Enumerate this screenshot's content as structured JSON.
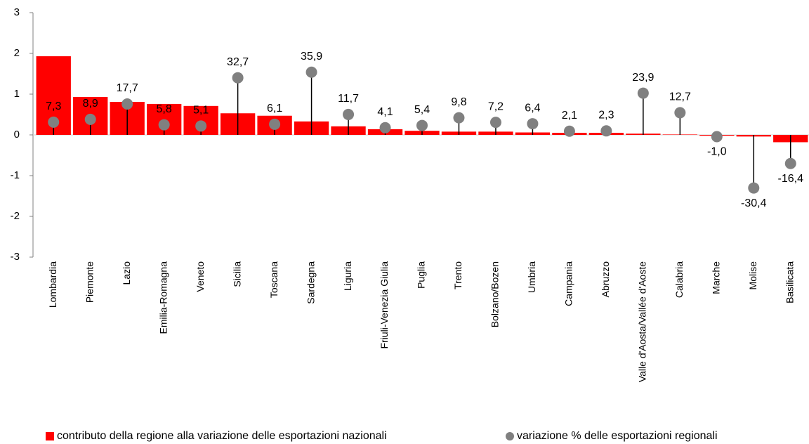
{
  "chart_data": {
    "type": "bar",
    "categories": [
      "Lombardia",
      "Piemonte",
      "Lazio",
      "Emilia-Romagna",
      "Veneto",
      "Sicilia",
      "Toscana",
      "Sardegna",
      "Liguria",
      "Friuli-Venezia Giulia",
      "Puglia",
      "Trento",
      "Bolzano/Bozen",
      "Umbria",
      "Campania",
      "Abruzzo",
      "Valle d'Aosta/Vallée d'Aoste",
      "Calabria",
      "Marche",
      "Molise",
      "Basilicata"
    ],
    "series": [
      {
        "name": "contributo della regione alla variazione delle esportazioni nazionali",
        "type": "bar",
        "color": "#ff0000",
        "values": [
          1.93,
          0.93,
          0.81,
          0.76,
          0.71,
          0.53,
          0.47,
          0.33,
          0.21,
          0.14,
          0.1,
          0.08,
          0.08,
          0.06,
          0.05,
          0.05,
          0.03,
          0.01,
          -0.02,
          -0.04,
          -0.18
        ]
      },
      {
        "name": "variazione % delle esportazioni regionali",
        "type": "lollipop",
        "axis": "y2",
        "color": "#808080",
        "values": [
          7.3,
          8.9,
          17.7,
          5.8,
          5.1,
          32.7,
          6.1,
          35.9,
          11.7,
          4.1,
          5.4,
          9.8,
          7.2,
          6.4,
          2.1,
          2.3,
          23.9,
          12.7,
          -1.0,
          -30.4,
          -16.4
        ],
        "value_labels": [
          "7,3",
          "8,9",
          "17,7",
          "5,8",
          "5,1",
          "32,7",
          "6,1",
          "35,9",
          "11,7",
          "4,1",
          "5,4",
          "9,8",
          "7,2",
          "6,4",
          "2,1",
          "2,3",
          "23,9",
          "12,7",
          "-1,0",
          "-30,4",
          "-16,4"
        ]
      }
    ],
    "ylim": [
      -3,
      3
    ],
    "yticks": [
      -3,
      -2,
      -1,
      0,
      1,
      2,
      3
    ],
    "y2lim": [
      -70,
      70
    ],
    "legend": "bottom"
  }
}
